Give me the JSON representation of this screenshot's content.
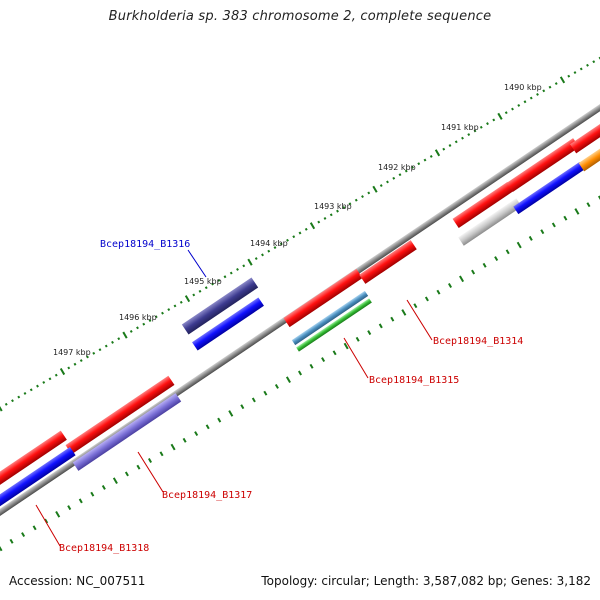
{
  "title": "Burkholderia sp. 383 chromosome 2, complete sequence",
  "accession": "Accession: NC_007511",
  "summary": "Topology: circular; Length: 3,587,082 bp; Genes: 3,182",
  "scale_labels": [
    "1490 kbp",
    "1491 kbp",
    "1492 kbp",
    "1493 kbp",
    "1494 kbp",
    "1495 kbp",
    "1496 kbp",
    "1497 kbp"
  ],
  "gene_labels": {
    "b1316": "Bcep18194_B1316",
    "b1314": "Bcep18194_B1314",
    "b1315": "Bcep18194_B1315",
    "b1317": "Bcep18194_B1317",
    "b1318": "Bcep18194_B1318"
  },
  "colors": {
    "forward_gene": "#ff0000",
    "reverse_gene": "#0000ff",
    "highlight_gene": "#3b3a8f",
    "purple_gene": "#7b6fd6",
    "teal_gene": "#4a8fbf",
    "green_gene": "#33bb33",
    "gray_gene": "#c8c8c8",
    "orange_gene": "#ff8c00",
    "backbone": "#888888",
    "tick": "#1a7a1a",
    "label_red": "#cc0000",
    "label_blue": "#0000cc"
  }
}
